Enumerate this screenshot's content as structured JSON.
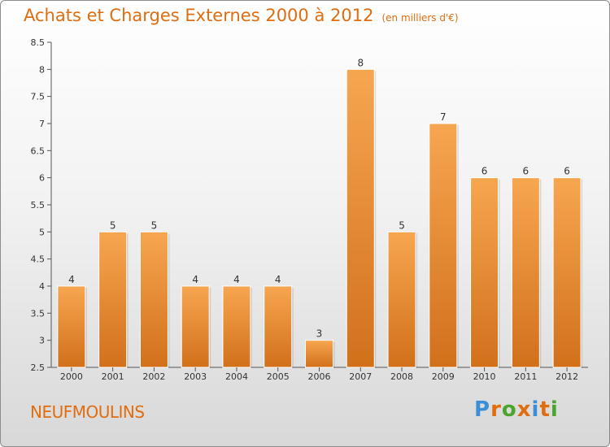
{
  "title": "Achats et Charges Externes 2000 à 2012",
  "subtitle": "(en milliers d'€)",
  "commune": "NEUFMOULINS",
  "logo": {
    "letters": [
      "P",
      "r",
      "o",
      "x",
      "i",
      "t",
      "i"
    ],
    "colors": [
      "#3a8fd8",
      "#e06d10",
      "#4aa52e",
      "#e06d10",
      "#3a8fd8",
      "#e06d10",
      "#4aa52e"
    ]
  },
  "chart_data": {
    "type": "bar",
    "title": "Achats et Charges Externes 2000 à 2012",
    "subtitle": "(en milliers d'€)",
    "categories": [
      "2000",
      "2001",
      "2002",
      "2003",
      "2004",
      "2005",
      "2006",
      "2007",
      "2008",
      "2009",
      "2010",
      "2011",
      "2012"
    ],
    "values": [
      4,
      5,
      5,
      4,
      4,
      4,
      3,
      8,
      5,
      7,
      6,
      6,
      6
    ],
    "labels": [
      "4",
      "5",
      "5",
      "4",
      "4",
      "4",
      "3",
      "8",
      "5",
      "7",
      "6",
      "6",
      "6"
    ],
    "ylim": [
      2.5,
      8.5
    ],
    "yticks": [
      "2.5",
      "3",
      "3.5",
      "4",
      "4.5",
      "5",
      "5.5",
      "6",
      "6.5",
      "7",
      "7.5",
      "8",
      "8.5"
    ],
    "grid": false,
    "bar_color": "#f0892a"
  }
}
